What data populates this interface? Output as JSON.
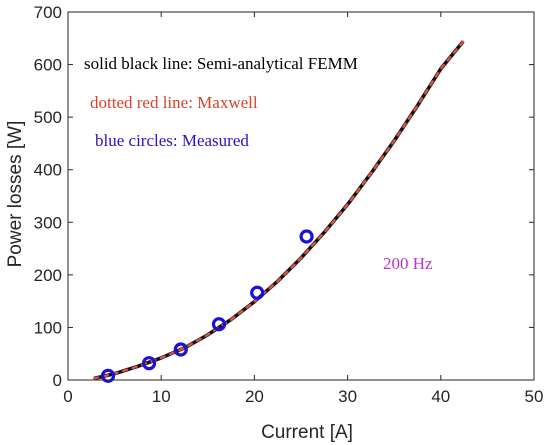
{
  "chart_data": {
    "type": "line",
    "title": "",
    "xlabel": "Current [A]",
    "ylabel": "Power losses [W]",
    "xlim": [
      0,
      50
    ],
    "ylim": [
      0,
      700
    ],
    "xticks": [
      0,
      10,
      20,
      30,
      40,
      50
    ],
    "yticks": [
      0,
      100,
      200,
      300,
      400,
      500,
      600,
      700
    ],
    "grid": false,
    "series": [
      {
        "style": "solid",
        "color": "#111111",
        "x": [
          2.8,
          5,
          7.5,
          10,
          12.5,
          15,
          17.5,
          20,
          22.5,
          25,
          27.5,
          30,
          32.5,
          35,
          37.5,
          40,
          42.4
        ],
        "y": [
          3,
          12,
          26,
          42,
          61,
          86,
          115,
          149,
          188,
          232,
          281,
          334,
          393,
          455,
          522,
          592,
          644
        ]
      },
      {
        "style": "dotted",
        "color": "#e0523c",
        "x": [
          2.8,
          5,
          7.5,
          10,
          12.5,
          15,
          17.5,
          20,
          22.5,
          25,
          27.5,
          30,
          32.5,
          35,
          37.5,
          40,
          42.4
        ],
        "y": [
          3,
          12,
          26,
          42,
          61,
          86,
          115,
          149,
          188,
          232,
          281,
          334,
          393,
          455,
          522,
          592,
          644
        ]
      },
      {
        "style": "circles",
        "color": "#1a10d8",
        "x": [
          4.3,
          8.7,
          12.1,
          16.2,
          20.3,
          25.6
        ],
        "y": [
          8,
          32,
          58,
          106,
          166,
          273
        ]
      }
    ],
    "annotations": [
      {
        "text": "solid black line: Semi-analytical FEMM",
        "color": "#000000"
      },
      {
        "text": "dotted red line: Maxwell",
        "color": "#d8432c"
      },
      {
        "text": "blue circles: Measured",
        "color": "#2a10c8"
      },
      {
        "text": "200 Hz",
        "color": "#bb33cc"
      }
    ]
  }
}
